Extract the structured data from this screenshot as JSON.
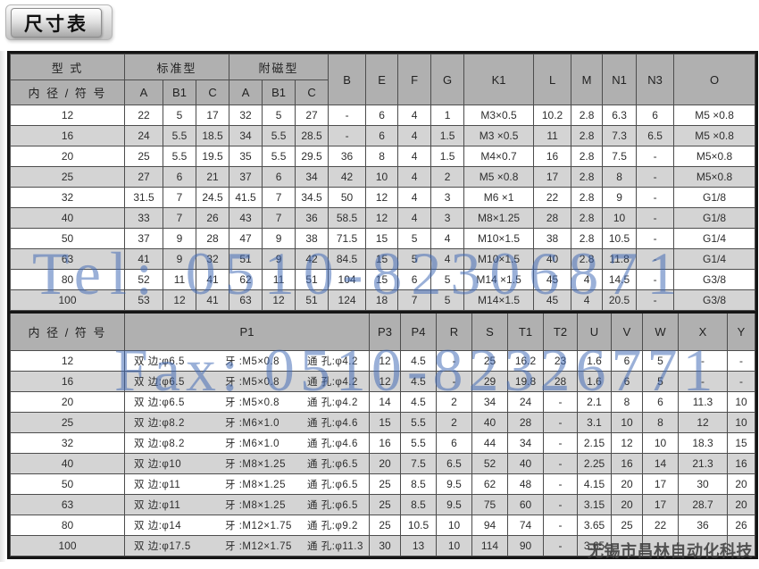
{
  "page_title": "尺寸表",
  "watermarks": {
    "tel": "Tel: 0510-82306871",
    "fax": "Fax: 0510-82326771",
    "company": "无锡市昌林自动化科技"
  },
  "colors": {
    "header_bg": "#b0b0b0",
    "alt_row_bg": "#d4d4d4",
    "outer_border": "#151515",
    "grid_border": "#4d4d4d",
    "watermark_blue": "#3f69b5",
    "watermark_gray": "#3e3e3e"
  },
  "table1": {
    "header": {
      "type_label": "型 式",
      "bore_label": "内 径 / 符 号",
      "standard_group": "标准型",
      "magnetic_group": "附磁型",
      "sub_cols": [
        "A",
        "B1",
        "C",
        "A",
        "B1",
        "C"
      ],
      "single_cols": [
        "B",
        "E",
        "F",
        "G",
        "K1",
        "L",
        "M",
        "N1",
        "N3",
        "O"
      ]
    },
    "rows": [
      [
        "12",
        "22",
        "5",
        "17",
        "32",
        "5",
        "27",
        "-",
        "6",
        "4",
        "1",
        "M3×0.5",
        "10.2",
        "2.8",
        "6.3",
        "6",
        "M5 ×0.8"
      ],
      [
        "16",
        "24",
        "5.5",
        "18.5",
        "34",
        "5.5",
        "28.5",
        "-",
        "6",
        "4",
        "1.5",
        "M3 ×0.5",
        "11",
        "2.8",
        "7.3",
        "6.5",
        "M5 ×0.8"
      ],
      [
        "20",
        "25",
        "5.5",
        "19.5",
        "35",
        "5.5",
        "29.5",
        "36",
        "8",
        "4",
        "1.5",
        "M4×0.7",
        "16",
        "2.8",
        "7.5",
        "-",
        "M5×0.8"
      ],
      [
        "25",
        "27",
        "6",
        "21",
        "37",
        "6",
        "34",
        "42",
        "10",
        "4",
        "2",
        "M5 ×0.8",
        "17",
        "2.8",
        "8",
        "-",
        "M5×0.8"
      ],
      [
        "32",
        "31.5",
        "7",
        "24.5",
        "41.5",
        "7",
        "34.5",
        "50",
        "12",
        "4",
        "3",
        "M6 ×1",
        "22",
        "2.8",
        "9",
        "-",
        "G1/8"
      ],
      [
        "40",
        "33",
        "7",
        "26",
        "43",
        "7",
        "36",
        "58.5",
        "12",
        "4",
        "3",
        "M8×1.25",
        "28",
        "2.8",
        "10",
        "-",
        "G1/8"
      ],
      [
        "50",
        "37",
        "9",
        "28",
        "47",
        "9",
        "38",
        "71.5",
        "15",
        "5",
        "4",
        "M10×1.5",
        "38",
        "2.8",
        "10.5",
        "-",
        "G1/4"
      ],
      [
        "63",
        "41",
        "9",
        "32",
        "51",
        "9",
        "42",
        "84.5",
        "15",
        "5",
        "4",
        "M10×1.5",
        "40",
        "2.8",
        "11.8",
        "-",
        "G1/4"
      ],
      [
        "80",
        "52",
        "11",
        "41",
        "62",
        "11",
        "51",
        "104",
        "15",
        "6",
        "5",
        "M14 ×1.5",
        "45",
        "4",
        "14.5",
        "-",
        "G3/8"
      ],
      [
        "100",
        "53",
        "12",
        "41",
        "63",
        "12",
        "51",
        "124",
        "18",
        "7",
        "5",
        "M14×1.5",
        "45",
        "4",
        "20.5",
        "-",
        "G3/8"
      ]
    ]
  },
  "table2": {
    "header": {
      "bore_label": "内 径 / 符 号",
      "p1_label": "P1",
      "cols": [
        "P3",
        "P4",
        "R",
        "S",
        "T1",
        "T2",
        "U",
        "V",
        "W",
        "X",
        "Y"
      ]
    },
    "rows": [
      {
        "bore": "12",
        "p1": [
          "双 边:φ6.5",
          "牙 :M5×0.8",
          "通 孔:φ4.2"
        ],
        "vals": [
          "12",
          "4.5",
          "-",
          "25",
          "16.2",
          "23",
          "1.6",
          "6",
          "5",
          "-",
          "-"
        ]
      },
      {
        "bore": "16",
        "p1": [
          "双 边:φ6.5",
          "牙 :M5×0.8",
          "通 孔:φ4.2"
        ],
        "vals": [
          "12",
          "4.5",
          "-",
          "29",
          "19.8",
          "28",
          "1.6",
          "6",
          "5",
          "-",
          "-"
        ]
      },
      {
        "bore": "20",
        "p1": [
          "双 边:φ6.5",
          "牙 :M5×0.8",
          "通 孔:φ4.2"
        ],
        "vals": [
          "14",
          "4.5",
          "2",
          "34",
          "24",
          "-",
          "2.1",
          "8",
          "6",
          "11.3",
          "10"
        ]
      },
      {
        "bore": "25",
        "p1": [
          "双 边:φ8.2",
          "牙 :M6×1.0",
          "通 孔:φ4.6"
        ],
        "vals": [
          "15",
          "5.5",
          "2",
          "40",
          "28",
          "-",
          "3.1",
          "10",
          "8",
          "12",
          "10"
        ]
      },
      {
        "bore": "32",
        "p1": [
          "双 边:φ8.2",
          "牙 :M6×1.0",
          "通 孔:φ4.6"
        ],
        "vals": [
          "16",
          "5.5",
          "6",
          "44",
          "34",
          "-",
          "2.15",
          "12",
          "10",
          "18.3",
          "15"
        ]
      },
      {
        "bore": "40",
        "p1": [
          "双 边:φ10",
          "牙 :M8×1.25",
          "通 孔:φ6.5"
        ],
        "vals": [
          "20",
          "7.5",
          "6.5",
          "52",
          "40",
          "-",
          "2.25",
          "16",
          "14",
          "21.3",
          "16"
        ]
      },
      {
        "bore": "50",
        "p1": [
          "双 边:φ11",
          "牙 :M8×1.25",
          "通 孔:φ6.5"
        ],
        "vals": [
          "25",
          "8.5",
          "9.5",
          "62",
          "48",
          "-",
          "4.15",
          "20",
          "17",
          "30",
          "20"
        ]
      },
      {
        "bore": "63",
        "p1": [
          "双 边:φ11",
          "牙 :M8×1.25",
          "通 孔:φ6.5"
        ],
        "vals": [
          "25",
          "8.5",
          "9.5",
          "75",
          "60",
          "-",
          "3.15",
          "20",
          "17",
          "28.7",
          "20"
        ]
      },
      {
        "bore": "80",
        "p1": [
          "双 边:φ14",
          "牙 :M12×1.75",
          "通 孔:φ9.2"
        ],
        "vals": [
          "25",
          "10.5",
          "10",
          "94",
          "74",
          "-",
          "3.65",
          "25",
          "22",
          "36",
          "26"
        ]
      },
      {
        "bore": "100",
        "p1": [
          "双 边:φ17.5",
          "牙 :M12×1.75",
          "通 孔:φ11.3"
        ],
        "vals": [
          "30",
          "13",
          "10",
          "114",
          "90",
          "-",
          "3.65",
          "",
          "",
          "",
          ""
        ]
      }
    ]
  }
}
